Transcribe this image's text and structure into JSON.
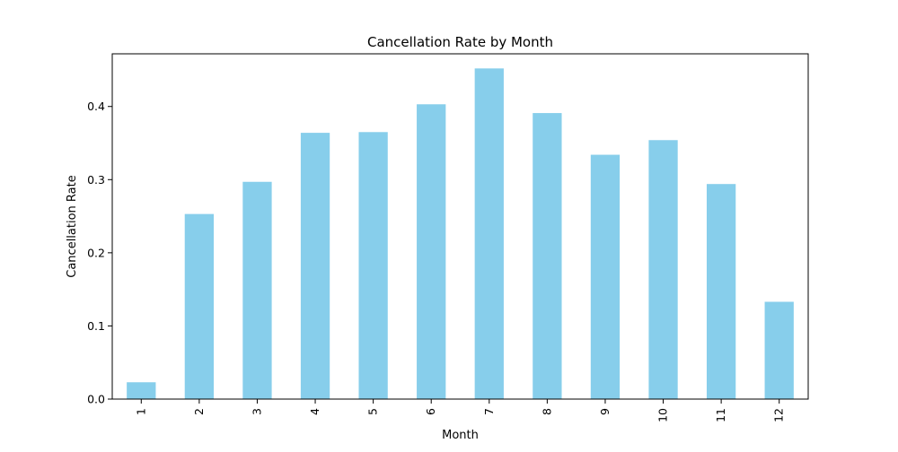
{
  "chart_data": {
    "type": "bar",
    "title": "Cancellation Rate by Month",
    "xlabel": "Month",
    "ylabel": "Cancellation Rate",
    "categories": [
      "1",
      "2",
      "3",
      "4",
      "5",
      "6",
      "7",
      "8",
      "9",
      "10",
      "11",
      "12"
    ],
    "values": [
      0.023,
      0.253,
      0.297,
      0.364,
      0.365,
      0.403,
      0.452,
      0.391,
      0.334,
      0.354,
      0.294,
      0.133
    ],
    "ylim": [
      0,
      0.472
    ],
    "yticks": [
      0.0,
      0.1,
      0.2,
      0.3,
      0.4
    ],
    "ytick_labels": [
      "0.0",
      "0.1",
      "0.2",
      "0.3",
      "0.4"
    ],
    "grid": false,
    "legend": "none",
    "bar_color": "#87ceeb"
  }
}
